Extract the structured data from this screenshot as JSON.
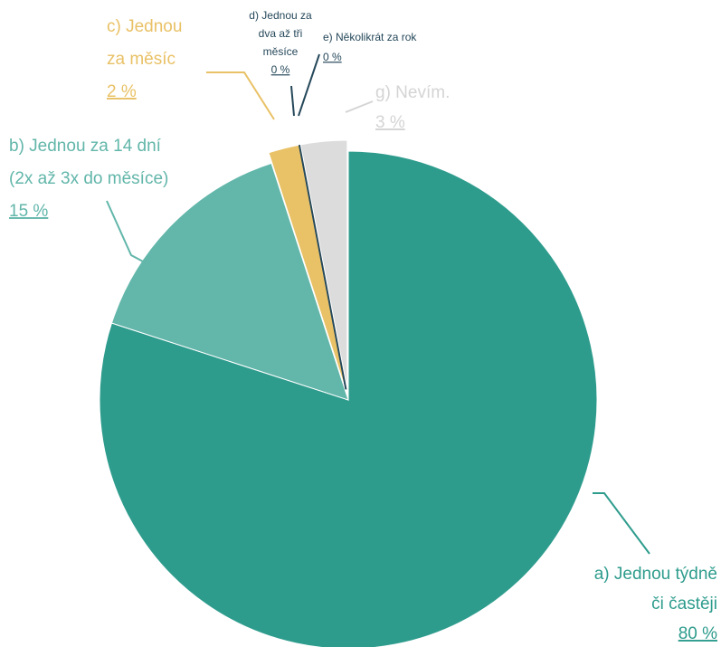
{
  "chart_data": {
    "type": "pie",
    "categories": [
      [
        "a) Jednou týdně",
        "či častěji"
      ],
      [
        "b) Jednou za 14 dní",
        "(2x až 3x do měsíce)"
      ],
      [
        "c) Jednou",
        "za měsíc"
      ],
      [
        "d) Jednou za",
        "dva až tři",
        "měsíce"
      ],
      [
        "e) Několikrát za rok"
      ],
      [
        "g) Nevím."
      ]
    ],
    "values": [
      80,
      15,
      2,
      0,
      0,
      3
    ],
    "value_labels": [
      "80 %",
      "15 %",
      "2 %",
      "0 %",
      "0 %",
      "3 %"
    ],
    "colors": [
      "#2e9c8d",
      "#62b6aa",
      "#e9c166",
      "#25485a",
      "#25485a",
      "#dcdcdc"
    ],
    "label_colors": [
      "#2e9c8d",
      "#62b6aa",
      "#e9c166",
      "#25485a",
      "#25485a",
      "#d4d4d4"
    ],
    "exploded": [
      false,
      false,
      true,
      true,
      true,
      true
    ]
  }
}
